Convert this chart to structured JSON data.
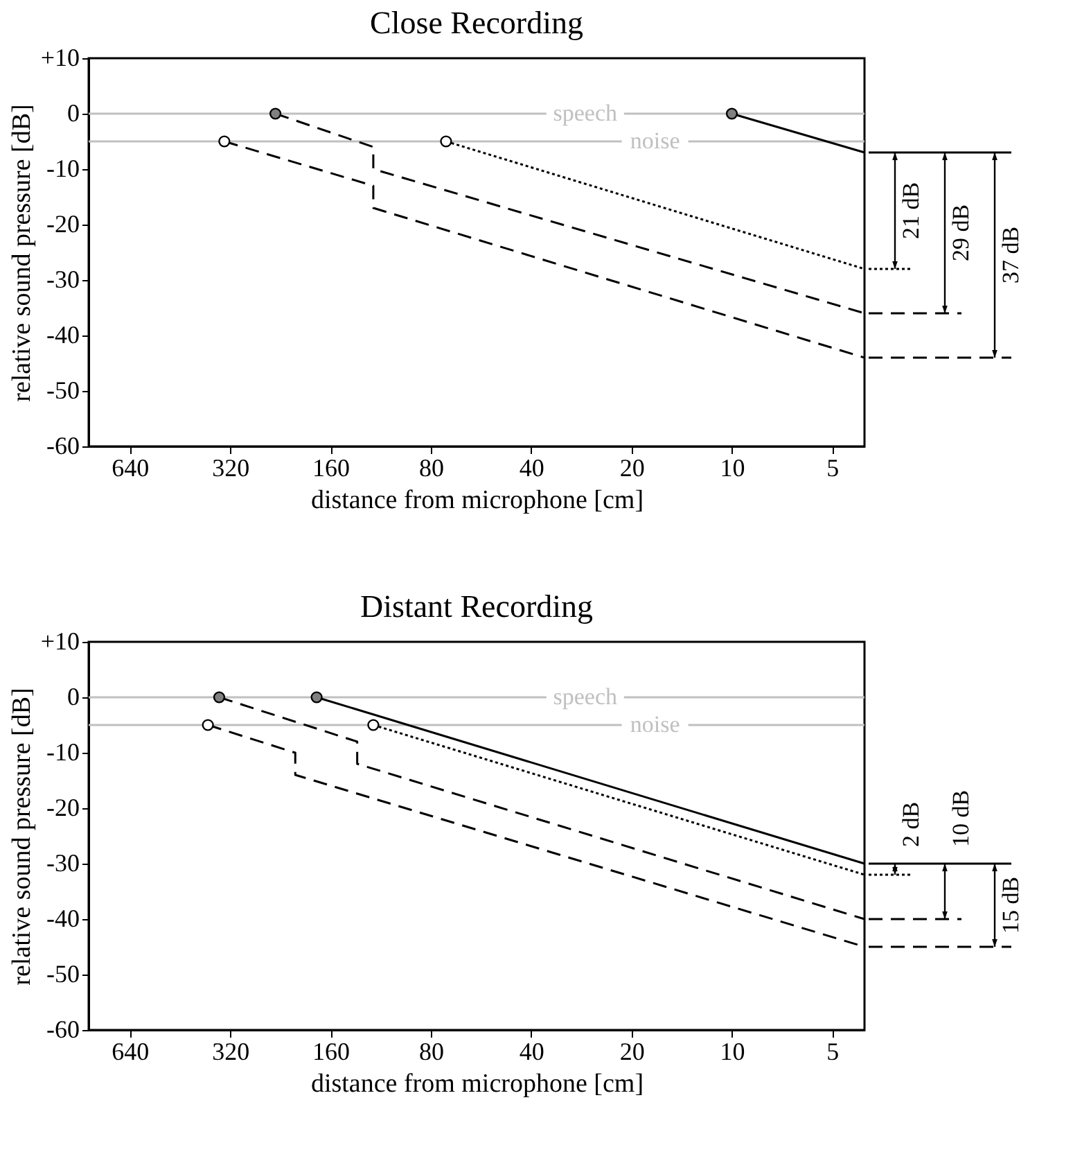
{
  "chart_data": [
    {
      "type": "line",
      "title": "Close Recording",
      "xlabel": "distance from microphone [cm]",
      "ylabel": "relative sound pressure [dB]",
      "log": "x",
      "xlim": [
        850,
        4
      ],
      "xticks": [
        640,
        320,
        160,
        80,
        40,
        20,
        10,
        5
      ],
      "ylim": [
        -60,
        10
      ],
      "yticks": [
        {
          "value": 10,
          "label": "+10"
        },
        0,
        -10,
        -20,
        -30,
        -40,
        -50,
        -60
      ],
      "grid": false,
      "ref_lines": [
        {
          "axis": "y",
          "value": 0,
          "label": "speech",
          "color": "#c0c0c0"
        },
        {
          "axis": "y",
          "value": -5,
          "label": "noise",
          "color": "#c0c0c0"
        }
      ],
      "annotations": [
        "21 dB",
        "29 dB",
        "37 dB"
      ],
      "series": [
        {
          "color": "#000000",
          "line_style": "solid",
          "x": [
            10,
            4
          ],
          "values": [
            0,
            -7
          ]
        },
        {
          "color": "#000000",
          "line_style": "dotted",
          "x": [
            72,
            4
          ],
          "values": [
            -5,
            -28
          ]
        },
        {
          "color": "#000000",
          "line_style": "dashed",
          "x": [
            234,
            119,
            119,
            4
          ],
          "values": [
            0,
            -6,
            -10,
            -36
          ]
        },
        {
          "color": "#000000",
          "line_style": "dashed",
          "x": [
            333,
            119,
            119,
            4
          ],
          "values": [
            -5,
            -13,
            -17,
            -44
          ]
        },
        {
          "type": "scatter",
          "color": "#808080",
          "x": [
            10,
            234
          ],
          "values": [
            0,
            0
          ]
        },
        {
          "type": "scatter",
          "color": "#ffffff",
          "x": [
            72,
            333
          ],
          "values": [
            -5,
            -5
          ]
        }
      ]
    },
    {
      "type": "line",
      "title": "Distant Recording",
      "xlabel": "distance from microphone [cm]",
      "ylabel": "relative sound pressure [dB]",
      "log": "x",
      "xlim": [
        850,
        4
      ],
      "xticks": [
        640,
        320,
        160,
        80,
        40,
        20,
        10,
        5
      ],
      "ylim": [
        -60,
        10
      ],
      "yticks": [
        {
          "value": 10,
          "label": "+10"
        },
        0,
        -10,
        -20,
        -30,
        -40,
        -50,
        -60
      ],
      "grid": false,
      "ref_lines": [
        {
          "axis": "y",
          "value": 0,
          "label": "speech",
          "color": "#c0c0c0"
        },
        {
          "axis": "y",
          "value": -5,
          "label": "noise",
          "color": "#c0c0c0"
        }
      ],
      "annotations": [
        "2 dB",
        "10 dB",
        "15 dB"
      ],
      "series": [
        {
          "color": "#000000",
          "line_style": "solid",
          "x": [
            176,
            4
          ],
          "values": [
            0,
            -30
          ]
        },
        {
          "color": "#000000",
          "line_style": "dotted",
          "x": [
            119,
            4
          ],
          "values": [
            -5,
            -32
          ]
        },
        {
          "color": "#000000",
          "line_style": "dashed",
          "x": [
            345,
            133,
            133,
            4
          ],
          "values": [
            0,
            -8,
            -12,
            -40
          ]
        },
        {
          "color": "#000000",
          "line_style": "dashed",
          "x": [
            373,
            204,
            204,
            4
          ],
          "values": [
            -5,
            -10,
            -14,
            -45
          ]
        },
        {
          "type": "scatter",
          "color": "#808080",
          "x": [
            176,
            345
          ],
          "values": [
            0,
            0
          ]
        },
        {
          "type": "scatter",
          "color": "#ffffff",
          "x": [
            119,
            373
          ],
          "values": [
            -5,
            -5
          ]
        }
      ]
    }
  ]
}
